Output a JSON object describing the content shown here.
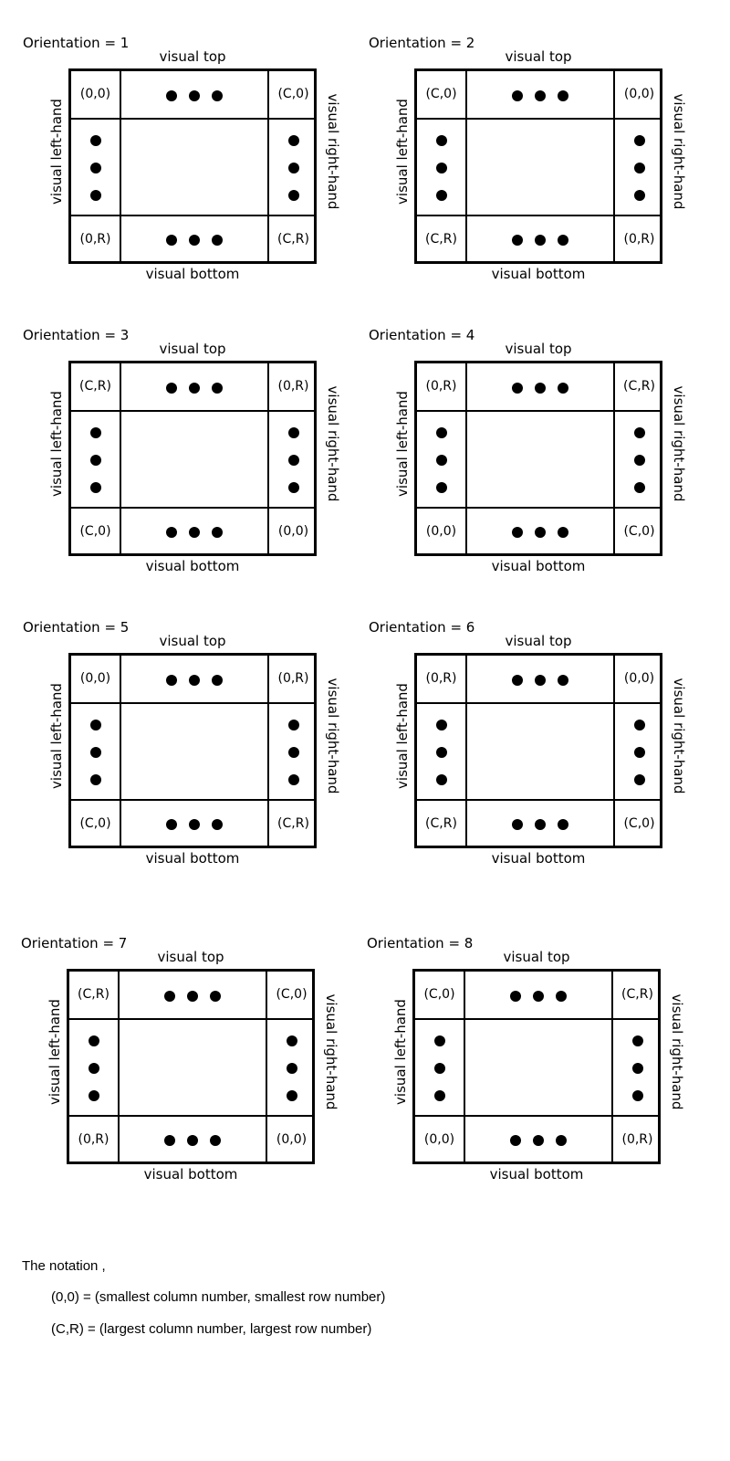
{
  "labels": {
    "top": "visual top",
    "bottom": "visual bottom",
    "left": "visual left-hand",
    "right": "visual right-hand"
  },
  "panels": [
    {
      "title": "Orientation = 1",
      "corners": {
        "tl": "(0,0)",
        "tr": "(C,0)",
        "bl": "(0,R)",
        "br": "(C,R)"
      }
    },
    {
      "title": "Orientation = 2",
      "corners": {
        "tl": "(C,0)",
        "tr": "(0,0)",
        "bl": "(C,R)",
        "br": "(0,R)"
      }
    },
    {
      "title": "Orientation = 3",
      "corners": {
        "tl": "(C,R)",
        "tr": "(0,R)",
        "bl": "(C,0)",
        "br": "(0,0)"
      }
    },
    {
      "title": "Orientation = 4",
      "corners": {
        "tl": "(0,R)",
        "tr": "(C,R)",
        "bl": "(0,0)",
        "br": "(C,0)"
      }
    },
    {
      "title": "Orientation = 5",
      "corners": {
        "tl": "(0,0)",
        "tr": "(0,R)",
        "bl": "(C,0)",
        "br": "(C,R)"
      }
    },
    {
      "title": "Orientation = 6",
      "corners": {
        "tl": "(0,R)",
        "tr": "(0,0)",
        "bl": "(C,R)",
        "br": "(C,0)"
      }
    },
    {
      "title": "Orientation = 7",
      "corners": {
        "tl": "(C,R)",
        "tr": "(C,0)",
        "bl": "(0,R)",
        "br": "(0,0)"
      }
    },
    {
      "title": "Orientation = 8",
      "corners": {
        "tl": "(C,0)",
        "tr": "(C,R)",
        "bl": "(0,0)",
        "br": "(0,R)"
      }
    }
  ],
  "notation": {
    "intro": "The notation ,",
    "line1": "(0,0) = (smallest column number, smallest row number)",
    "line2": "(C,R) = (largest column number, largest row number)"
  }
}
